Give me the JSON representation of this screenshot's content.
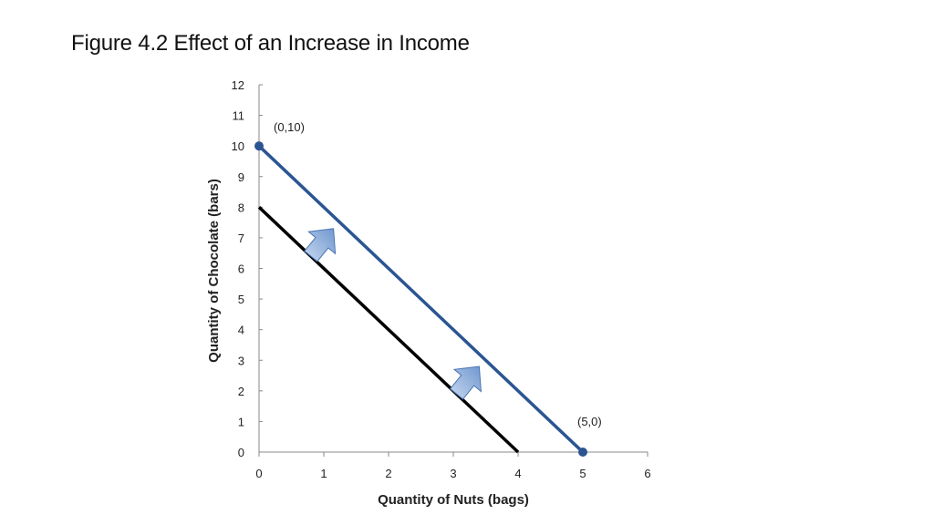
{
  "slide": {
    "title": "Figure 4.2  Effect of an Increase in Income"
  },
  "chart_data": {
    "type": "line",
    "xlabel": "Quantity of Nuts (bags)",
    "ylabel": "Quantity of Chocolate (bars)",
    "xlim": [
      0,
      6
    ],
    "ylim": [
      0,
      12
    ],
    "x_ticks": [
      0,
      1,
      2,
      3,
      4,
      5,
      6
    ],
    "y_ticks": [
      0,
      1,
      2,
      3,
      4,
      5,
      6,
      7,
      8,
      9,
      10,
      11,
      12
    ],
    "grid": false,
    "series": [
      {
        "color": "#000000",
        "points": [
          [
            0,
            8
          ],
          [
            4,
            0
          ]
        ]
      },
      {
        "color": "#2b5592",
        "points": [
          [
            0,
            10
          ],
          [
            5,
            0
          ]
        ],
        "endpoint_markers": true
      }
    ],
    "annotations": [
      {
        "text": "(0,10)",
        "x": 0,
        "y": 10
      },
      {
        "text": "(5,0)",
        "x": 5,
        "y": 0
      }
    ],
    "shift_arrows": [
      {
        "from": [
          0.8,
          6.4
        ],
        "to": [
          1.15,
          7.3
        ]
      },
      {
        "from": [
          3.05,
          1.9
        ],
        "to": [
          3.4,
          2.8
        ]
      }
    ],
    "colors": {
      "arrow_fill": "#6f97cf",
      "arrow_light": "#c8d9ef",
      "axis": "#888888"
    }
  }
}
